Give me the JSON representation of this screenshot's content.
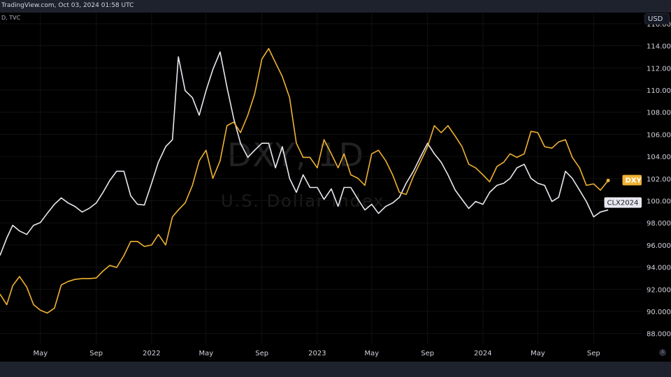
{
  "header": {
    "title": "TradingView.com, Oct 03, 2024 01:58 UTC",
    "legend": "D, TVC"
  },
  "currency": "USD",
  "auto_scale_label": "A",
  "watermark": {
    "symbol": "DXY, 1D",
    "name": "U.S. Dollar Index"
  },
  "colors": {
    "DXY": "#f0b232",
    "CLX2024": "#e8e8f0",
    "background": "#000000"
  },
  "chart_data": {
    "type": "line",
    "title": "",
    "xlabel": "",
    "ylabel": "",
    "ylim": [
      87.1,
      117.0
    ],
    "grid": true,
    "x_ticks": [
      "May",
      "Sep",
      "2022",
      "May",
      "Sep",
      "2023",
      "May",
      "Sep",
      "2024",
      "May",
      "Sep"
    ],
    "x_tick_dates": [
      "2021-05-01",
      "2021-09-01",
      "2022-01-01",
      "2022-05-01",
      "2022-09-01",
      "2023-01-01",
      "2023-05-01",
      "2023-09-01",
      "2024-01-01",
      "2024-05-01",
      "2024-09-01"
    ],
    "y_ticks": [
      "88.000",
      "90.000",
      "92.000",
      "94.000",
      "96.000",
      "98.000",
      "100.000",
      "102.000",
      "104.000",
      "106.000",
      "108.000",
      "110.000",
      "112.000",
      "114.000",
      "116.000"
    ],
    "x": [
      "2021-02-01",
      "2021-02-16",
      "2021-03-01",
      "2021-03-16",
      "2021-04-01",
      "2021-04-16",
      "2021-05-01",
      "2021-05-16",
      "2021-06-01",
      "2021-06-16",
      "2021-07-01",
      "2021-07-16",
      "2021-08-01",
      "2021-08-16",
      "2021-09-01",
      "2021-09-16",
      "2021-10-01",
      "2021-10-16",
      "2021-11-01",
      "2021-11-16",
      "2021-12-01",
      "2021-12-16",
      "2022-01-01",
      "2022-01-16",
      "2022-02-01",
      "2022-02-16",
      "2022-03-01",
      "2022-03-16",
      "2022-04-01",
      "2022-04-16",
      "2022-05-01",
      "2022-05-16",
      "2022-06-01",
      "2022-06-16",
      "2022-07-01",
      "2022-07-16",
      "2022-08-01",
      "2022-08-16",
      "2022-09-01",
      "2022-09-16",
      "2022-10-01",
      "2022-10-16",
      "2022-11-01",
      "2022-11-16",
      "2022-12-01",
      "2022-12-16",
      "2023-01-01",
      "2023-01-16",
      "2023-02-01",
      "2023-02-16",
      "2023-03-01",
      "2023-03-16",
      "2023-04-01",
      "2023-04-16",
      "2023-05-01",
      "2023-05-16",
      "2023-06-01",
      "2023-06-16",
      "2023-07-01",
      "2023-07-16",
      "2023-08-01",
      "2023-08-16",
      "2023-09-01",
      "2023-09-16",
      "2023-10-01",
      "2023-10-16",
      "2023-11-01",
      "2023-11-16",
      "2023-12-01",
      "2023-12-16",
      "2024-01-01",
      "2024-01-16",
      "2024-02-01",
      "2024-02-16",
      "2024-03-01",
      "2024-03-16",
      "2024-04-01",
      "2024-04-16",
      "2024-05-01",
      "2024-05-16",
      "2024-06-01",
      "2024-06-16",
      "2024-07-01",
      "2024-07-16",
      "2024-08-01",
      "2024-08-16",
      "2024-09-01",
      "2024-09-16",
      "2024-10-03"
    ],
    "series": [
      {
        "name": "DXY",
        "last_label": "DXY",
        "values": [
          91.56,
          90.61,
          92.32,
          93.15,
          92.2,
          90.61,
          90.1,
          89.85,
          90.29,
          92.39,
          92.7,
          92.89,
          92.96,
          92.96,
          93.02,
          93.65,
          94.16,
          93.97,
          95.05,
          96.32,
          96.32,
          95.87,
          96.0,
          96.95,
          96.0,
          98.54,
          99.17,
          99.8,
          101.39,
          103.61,
          104.56,
          102.02,
          103.61,
          106.78,
          107.1,
          106.15,
          107.73,
          109.63,
          112.8,
          113.75,
          112.48,
          111.22,
          109.31,
          105.19,
          103.92,
          103.92,
          102.97,
          105.51,
          104.24,
          102.97,
          104.24,
          102.34,
          102.02,
          101.39,
          104.24,
          104.56,
          103.61,
          102.34,
          100.76,
          100.57,
          102.21,
          103.48,
          104.88,
          106.78,
          106.15,
          106.78,
          105.83,
          104.88,
          103.29,
          102.97,
          102.34,
          101.71,
          103.1,
          103.48,
          104.24,
          103.92,
          104.24,
          106.27,
          106.15,
          104.88,
          104.75,
          105.32,
          105.51,
          103.92,
          102.97,
          101.39,
          101.52,
          100.95,
          101.83
        ]
      },
      {
        "name": "CLX2024",
        "last_label": "CLX2024",
        "values": [
          95.05,
          96.63,
          97.78,
          97.27,
          96.95,
          97.78,
          98.03,
          98.85,
          99.68,
          100.25,
          99.8,
          99.49,
          98.98,
          99.3,
          99.8,
          100.76,
          101.83,
          102.66,
          102.66,
          100.44,
          99.68,
          99.61,
          101.58,
          103.48,
          104.88,
          105.51,
          113.0,
          109.95,
          109.31,
          107.73,
          109.95,
          111.85,
          113.44,
          110.27,
          107.41,
          105.19,
          103.92,
          104.56,
          105.19,
          105.19,
          102.97,
          104.88,
          102.02,
          100.76,
          102.34,
          101.2,
          101.2,
          100.12,
          101.07,
          99.49,
          101.2,
          101.2,
          100.12,
          99.17,
          99.68,
          98.85,
          99.49,
          99.8,
          100.31,
          101.58,
          102.66,
          103.92,
          105.19,
          104.24,
          103.48,
          102.34,
          100.95,
          100.12,
          99.3,
          99.93,
          99.68,
          100.76,
          101.39,
          101.58,
          102.02,
          102.97,
          103.29,
          102.02,
          101.58,
          101.39,
          99.93,
          100.31,
          102.66,
          102.02,
          100.95,
          99.93,
          98.54,
          98.98,
          99.17
        ]
      }
    ]
  }
}
